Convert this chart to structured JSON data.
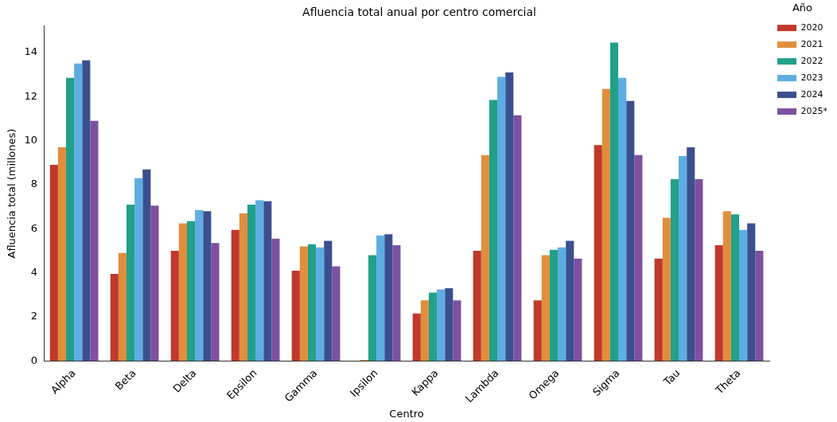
{
  "chart_data": {
    "type": "bar",
    "title": "Afluencia total anual por centro comercial",
    "xlabel": "Centro",
    "ylabel": "Afluencia total (millones)",
    "legend_title": "Año",
    "legend": "top right",
    "grid": false,
    "categories": [
      "Alpha",
      "Beta",
      "Delta",
      "Epsilon",
      "Gamma",
      "Ipsilon",
      "Kappa",
      "Lambda",
      "Omega",
      "Sigma",
      "Tau",
      "Theta"
    ],
    "ylim": [
      0,
      15.2
    ],
    "yticks": [
      0,
      2,
      4,
      6,
      8,
      10,
      12,
      14
    ],
    "series": [
      {
        "name": "2020",
        "color": "#c0392b",
        "values": [
          8.9,
          3.95,
          5.0,
          5.95,
          4.1,
          null,
          2.15,
          5.0,
          2.75,
          9.8,
          4.65,
          5.25
        ]
      },
      {
        "name": "2021",
        "color": "#e08e3c",
        "values": [
          9.7,
          4.9,
          6.25,
          6.7,
          5.2,
          0.05,
          2.75,
          9.35,
          4.8,
          12.35,
          6.5,
          6.8
        ]
      },
      {
        "name": "2022",
        "color": "#21a08a",
        "values": [
          12.85,
          7.1,
          6.35,
          7.1,
          5.3,
          4.8,
          3.1,
          11.85,
          5.05,
          14.45,
          8.25,
          6.65
        ]
      },
      {
        "name": "2023",
        "color": "#5dade2",
        "values": [
          13.5,
          8.3,
          6.85,
          7.3,
          5.15,
          5.7,
          3.25,
          12.9,
          5.15,
          12.85,
          9.3,
          5.95
        ]
      },
      {
        "name": "2024",
        "color": "#3b4f8f",
        "values": [
          13.65,
          8.7,
          6.8,
          7.25,
          5.45,
          5.75,
          3.3,
          13.1,
          5.45,
          11.8,
          9.7,
          6.25
        ]
      },
      {
        "name": "2025*",
        "color": "#7d50a0",
        "values": [
          10.9,
          7.05,
          5.35,
          5.55,
          4.3,
          5.25,
          2.75,
          11.15,
          4.65,
          9.35,
          8.25,
          5.0
        ]
      }
    ]
  }
}
